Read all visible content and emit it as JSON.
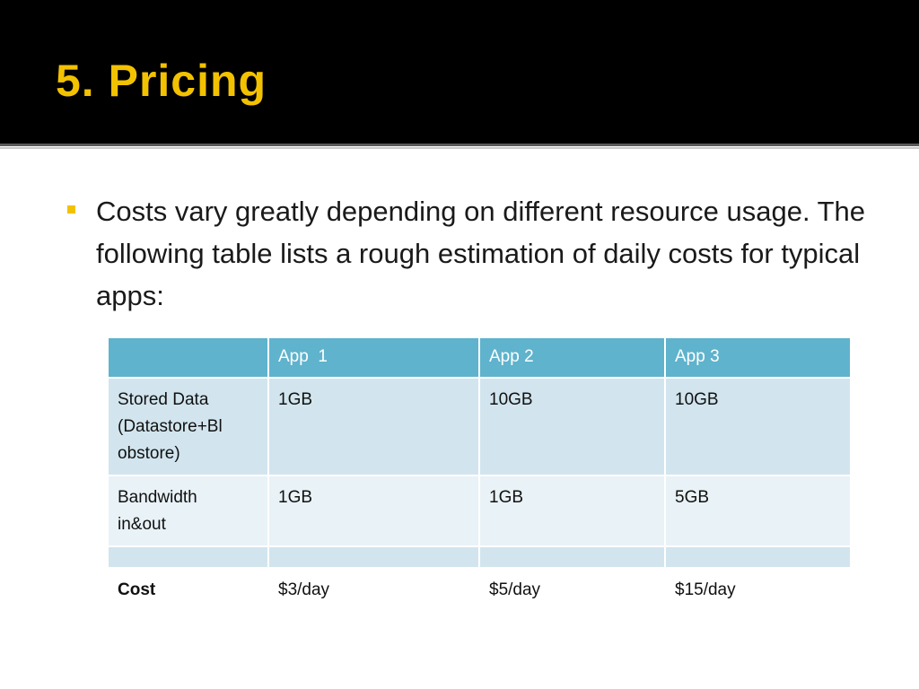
{
  "slide": {
    "title": "5. Pricing",
    "bullet": "Costs vary greatly depending on different resource usage. The following table lists a rough estimation of daily costs for typical apps:"
  },
  "table": {
    "headers": [
      "",
      "App  1",
      "App 2",
      "App 3"
    ],
    "rows": [
      {
        "label": "Stored Data (Datastore+Blobstore)",
        "values": [
          "1GB",
          "10GB",
          "10GB"
        ]
      },
      {
        "label": "Bandwidth in&out",
        "values": [
          "1GB",
          "1GB",
          "5GB"
        ]
      },
      {
        "label": "",
        "values": [
          "",
          "",
          ""
        ]
      },
      {
        "label": "Cost",
        "values": [
          "$3/day",
          "$5/day",
          "$15/day"
        ]
      }
    ]
  },
  "colors": {
    "header_bg": "#000000",
    "title_color": "#f2c200",
    "bullet_color": "#f2c200",
    "table_header": "#5fb3cc",
    "table_row_dark": "#d2e5ee",
    "table_row_light": "#e9f2f6"
  }
}
